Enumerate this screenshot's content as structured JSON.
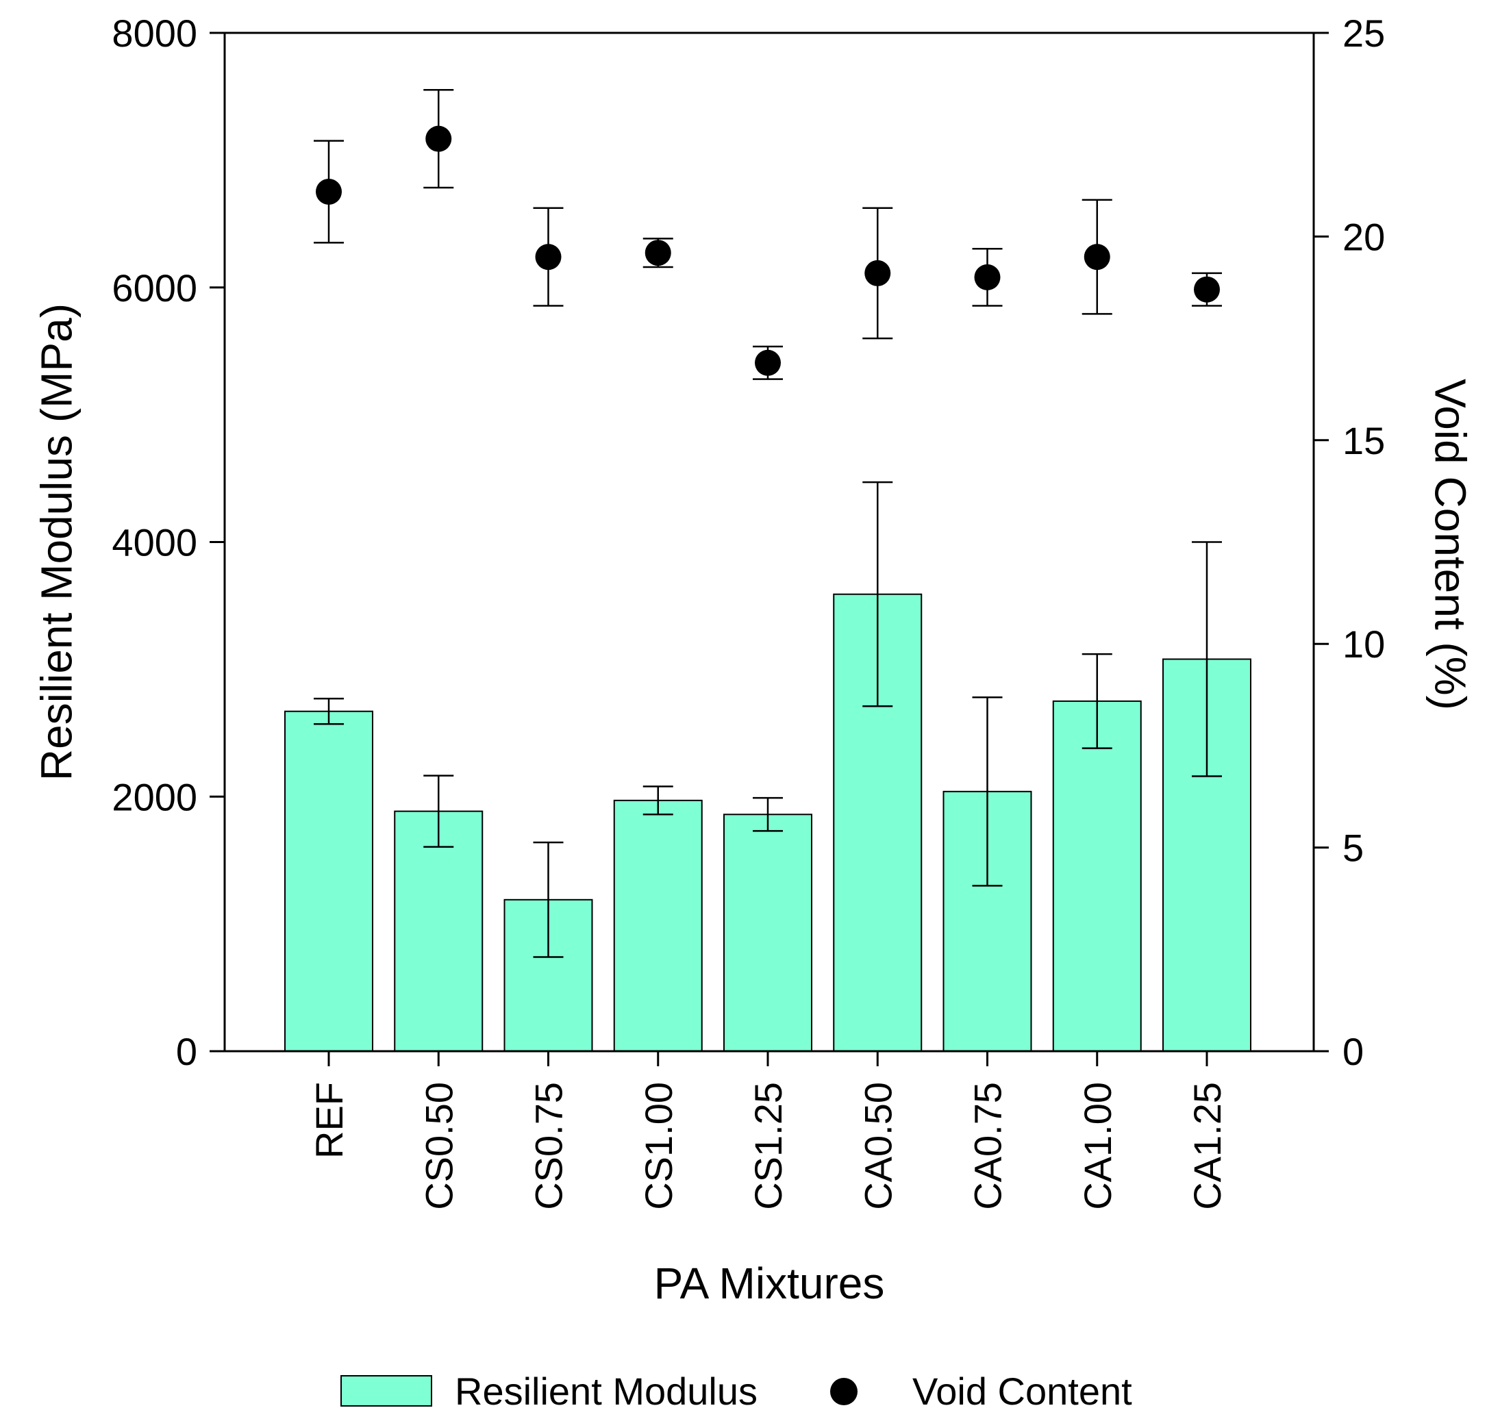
{
  "chart_data": {
    "type": "bar",
    "title": "",
    "xlabel": "PA Mixtures",
    "ylabel": "Resilient Modulus (MPa)",
    "y2label": "Void Content (%)",
    "categories": [
      "REF",
      "CS0.50",
      "CS0.75",
      "CS1.00",
      "CS1.25",
      "CA0.50",
      "CA0.75",
      "CA1.00",
      "CA1.25"
    ],
    "ylim": [
      0,
      8000
    ],
    "yticks": [
      "0",
      "2000",
      "4000",
      "6000",
      "8000"
    ],
    "y2lim": [
      0,
      25
    ],
    "y2ticks": [
      "0",
      "5",
      "10",
      "15",
      "20",
      "25"
    ],
    "grid": false,
    "legend_position": "bottom",
    "series": [
      {
        "name": "Resilient Modulus",
        "kind": "bar",
        "axis": "left",
        "color": "#7fffd4",
        "values": [
          2670,
          1885,
          1190,
          1970,
          1860,
          3590,
          2040,
          2750,
          3080
        ],
        "error": [
          100,
          280,
          450,
          110,
          130,
          880,
          740,
          370,
          920
        ]
      },
      {
        "name": "Void Content",
        "kind": "scatter",
        "axis": "right",
        "color": "#000000",
        "values": [
          21.1,
          22.4,
          19.5,
          19.6,
          16.9,
          19.1,
          19.0,
          19.5,
          18.7
        ],
        "error": [
          1.25,
          1.2,
          1.2,
          0.35,
          0.4,
          1.6,
          0.7,
          1.4,
          0.4
        ]
      }
    ]
  }
}
